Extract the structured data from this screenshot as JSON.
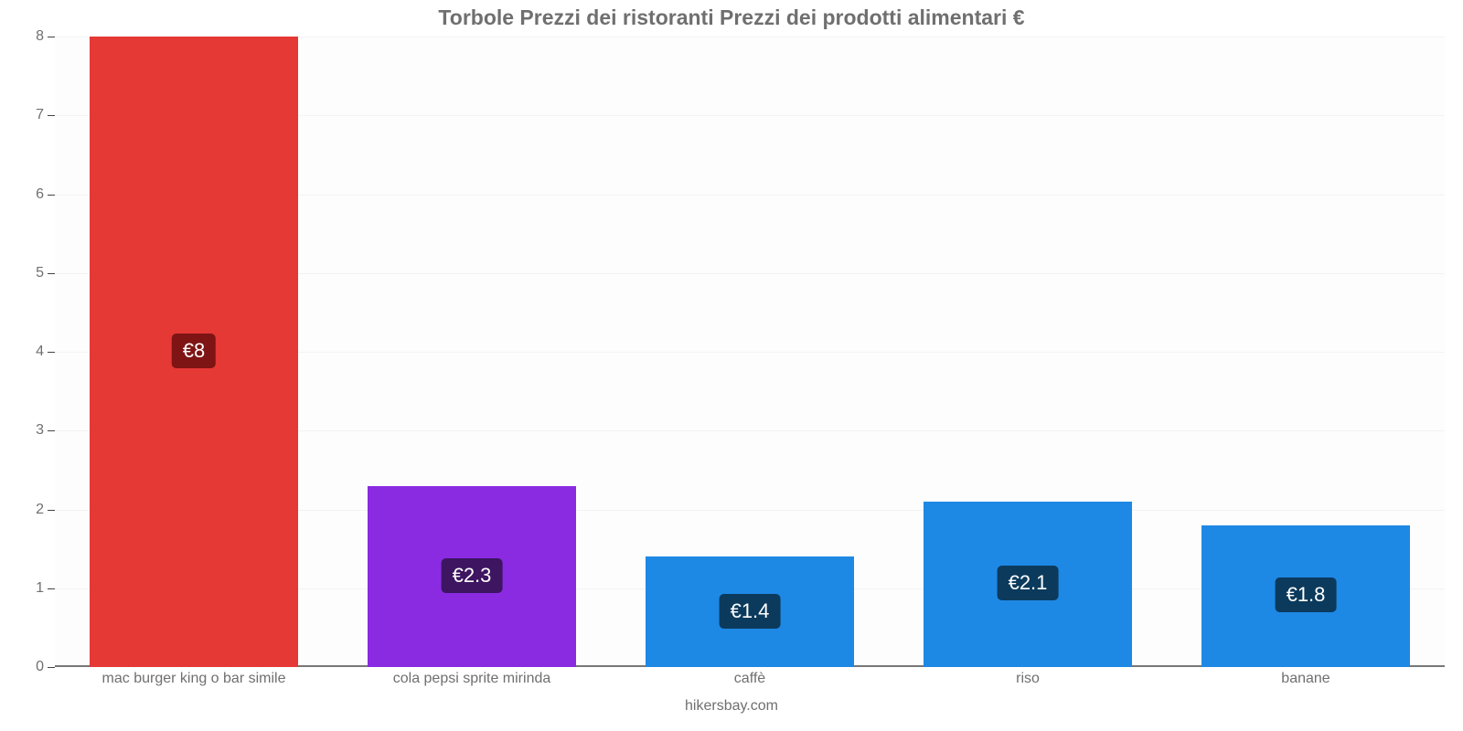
{
  "chart": {
    "type": "bar",
    "title": "Torbole Prezzi dei ristoranti Prezzi dei prodotti alimentari €",
    "title_fontsize": 23,
    "title_color": "#6f6f6f",
    "background_color": "#ffffff",
    "plot_background_color": "#fdfdfd",
    "grid_color": "#f3f3f3",
    "axis_line_color": "#777777",
    "axis_label_color": "#6f6f6f",
    "axis_label_fontsize": 16,
    "value_label_fontsize": 22,
    "value_label_text_color": "#ffffff",
    "ylim": [
      0,
      8
    ],
    "ytick_step": 1,
    "yticks": [
      0,
      1,
      2,
      3,
      4,
      5,
      6,
      7,
      8
    ],
    "bar_width_ratio": 0.75,
    "categories": [
      "mac burger king o bar simile",
      "cola pepsi sprite mirinda",
      "caffè",
      "riso",
      "banane"
    ],
    "values": [
      8,
      2.3,
      1.4,
      2.1,
      1.8
    ],
    "value_labels": [
      "€8",
      "€2.3",
      "€1.4",
      "€2.1",
      "€1.8"
    ],
    "bar_colors": [
      "#e53935",
      "#8a2be2",
      "#1e88e5",
      "#1e88e5",
      "#1e88e5"
    ],
    "badge_colors": [
      "#7f1414",
      "#3d1560",
      "#0b3a5c",
      "#0b3a5c",
      "#0b3a5c"
    ],
    "attribution": "hikersbay.com"
  }
}
